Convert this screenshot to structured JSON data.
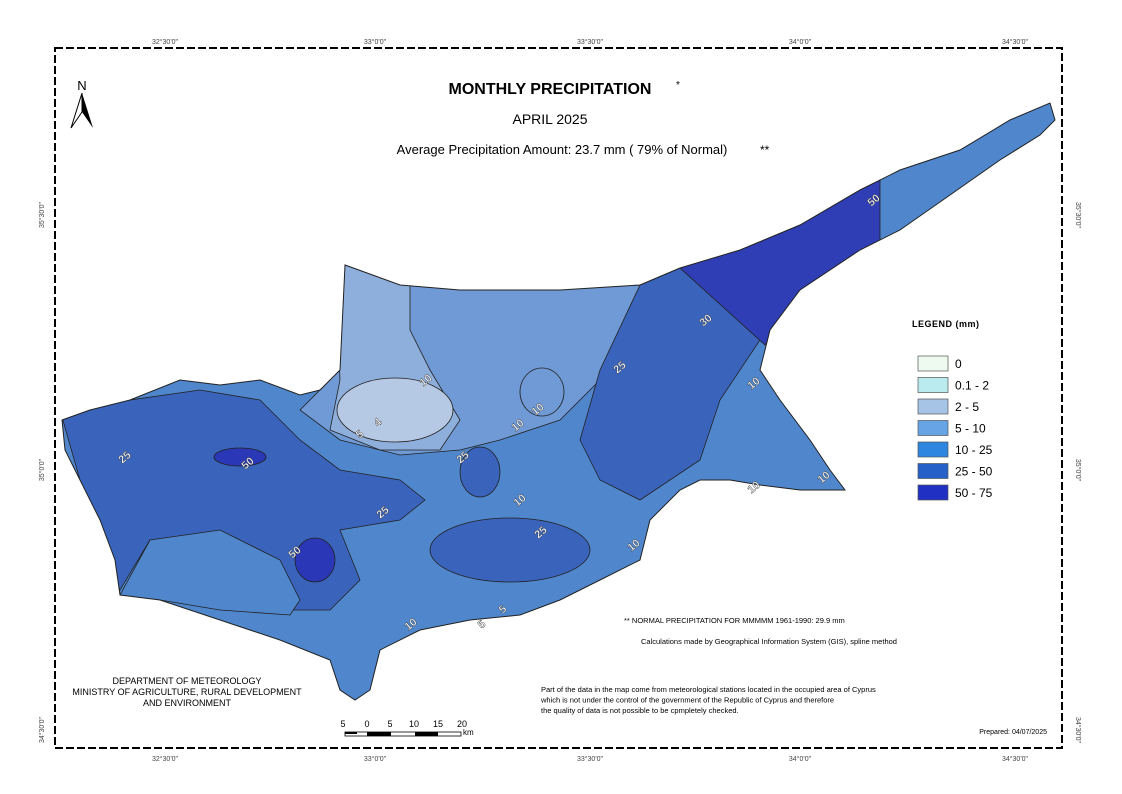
{
  "title": "MONTHLY  PRECIPITATION",
  "title_mark": "*",
  "subtitle": "APRIL 2025",
  "average": "Average Precipitation Amount: 23.7 mm  ( 79% of Normal)",
  "average_mark": "**",
  "north": "N",
  "legend": {
    "title": "LEGEND (mm)",
    "items": [
      {
        "label": "0",
        "color": "#eefaf0"
      },
      {
        "label": "0.1 - 2",
        "color": "#b9ebef"
      },
      {
        "label": "2 - 5",
        "color": "#a6c4e6"
      },
      {
        "label": "5 - 10",
        "color": "#67a4e6"
      },
      {
        "label": "10 - 25",
        "color": "#2e86e0"
      },
      {
        "label": "25 - 50",
        "color": "#2460c8"
      },
      {
        "label": "50 - 75",
        "color": "#1f30c2"
      }
    ]
  },
  "top_ticks": [
    "32°30'0\"",
    "33°0'0\"",
    "33°30'0\"",
    "34°0'0\"",
    "34°30'0\""
  ],
  "bottom_ticks": [
    "32°30'0\"",
    "33°0'0\"",
    "33°30'0\"",
    "34°0'0\"",
    "34°30'0\""
  ],
  "left_ticks": [
    "35°30'0\"",
    "35°0'0\"",
    "34°30'0\""
  ],
  "right_ticks": [
    "35°30'0\"",
    "35°0'0\"",
    "34°30'0\""
  ],
  "department": [
    "DEPARTMENT OF METEOROLOGY",
    "MINISTRY OF AGRICULTURE, RURAL DEVELOPMENT",
    "AND ENVIRONMENT"
  ],
  "scale": {
    "labels": [
      "5",
      "0",
      "5",
      "10",
      "15",
      "20"
    ],
    "unit": "km"
  },
  "notes": [
    "**   NORMAL PRECIPITATION FOR MMMMM 1961-1990: 29.9 mm",
    "Calculations made by Geographical Information System (GIS),  spline method"
  ],
  "disclaimer": [
    "Part of the data in the map come from meteorological stations located in the occupied area of Cyprus",
    "which is not under the control of the government of the Republic of Cyprus and therefore",
    "the quality of data is not possible to be cpmpletely checked."
  ],
  "prepared": "Prepared: 04/07/2025",
  "contour_labels": [
    "25",
    "50",
    "50",
    "25",
    "10",
    "4",
    "5",
    "10",
    "10",
    "10",
    "25",
    "10",
    "25",
    "25",
    "30",
    "50",
    "10",
    "10",
    "10",
    "5",
    "10",
    "5"
  ]
}
